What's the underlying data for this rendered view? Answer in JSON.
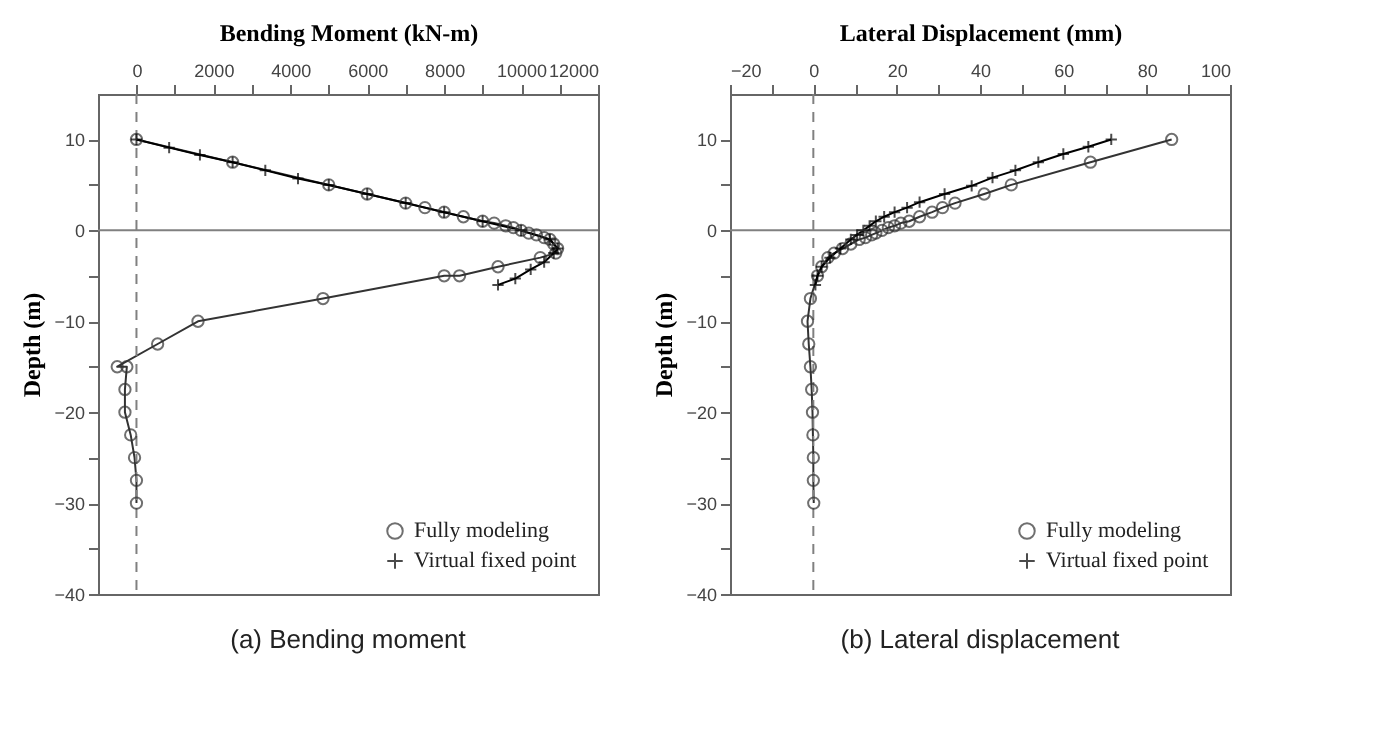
{
  "chart_data": [
    {
      "type": "line",
      "xlabel": "Bending Moment (kN-m)",
      "ylabel": "Depth (m)",
      "annotations": [
        "(a) Bending moment"
      ],
      "legend": "bottom right",
      "grid": false,
      "xlim": [
        -1000,
        12000
      ],
      "xticks": [
        0,
        {
          "value": 1000,
          "label": null
        },
        2000,
        {
          "value": 3000,
          "label": null
        },
        4000,
        {
          "value": 5000,
          "label": null
        },
        6000,
        {
          "value": 7000,
          "label": null
        },
        8000,
        {
          "value": 9000,
          "label": null
        },
        10000,
        {
          "value": 11000,
          "label": null
        },
        12000
      ],
      "ylim": [
        -40,
        15
      ],
      "yticks": [
        10,
        {
          "value": 5,
          "label": null
        },
        0,
        {
          "value": -5,
          "label": null
        },
        -10,
        {
          "value": -15,
          "label": null
        },
        -20,
        {
          "value": -25,
          "label": null
        },
        -30,
        {
          "value": -35,
          "label": null
        },
        -40
      ],
      "ref_lines": [
        {
          "axis": "x",
          "value": 0,
          "label": null,
          "color": "#808080",
          "line_style": "dashed"
        },
        {
          "axis": "y",
          "value": 0,
          "label": null,
          "color": "#808080",
          "line_style": "solid"
        }
      ],
      "series": [
        {
          "name": "Fully modeling",
          "color": "#333333",
          "marker": "circle",
          "x": [
            0,
            2500,
            5000,
            6000,
            7000,
            7500,
            8000,
            8500,
            9000,
            9300,
            9600,
            9800,
            10000,
            10200,
            10400,
            10600,
            10750,
            10850,
            10950,
            10900,
            10500,
            9400,
            8400,
            8000,
            4850,
            1600,
            550,
            -500,
            -250,
            -300,
            -300,
            -150,
            -50,
            0,
            0
          ],
          "values": [
            10,
            7.5,
            5,
            4,
            3,
            2.5,
            2,
            1.5,
            1,
            0.8,
            0.5,
            0.3,
            0,
            -0.3,
            -0.5,
            -0.8,
            -1,
            -1.5,
            -2,
            -2.5,
            -3,
            -4,
            -5,
            -5,
            -7.5,
            -10,
            -12.5,
            -15,
            -15,
            -17.5,
            -20,
            -22.5,
            -25,
            -27.5,
            -30
          ]
        },
        {
          "name": "Virtual fixed point",
          "color": "#000000",
          "marker": "cross",
          "x": [
            0,
            850,
            1650,
            2500,
            3350,
            4200,
            5000,
            6000,
            7000,
            8000,
            9000,
            10000,
            10750,
            10950,
            10850,
            10600,
            10250,
            9850,
            9400
          ],
          "values": [
            10,
            9.1,
            8.3,
            7.5,
            6.6,
            5.7,
            5,
            4,
            3,
            2,
            1,
            0,
            -1,
            -2,
            -2.5,
            -3.5,
            -4.3,
            -5.3,
            -6
          ]
        }
      ]
    },
    {
      "type": "line",
      "xlabel": "Lateral Displacement (mm)",
      "ylabel": "Depth (m)",
      "annotations": [
        "(b) Lateral displacement"
      ],
      "legend": "bottom right",
      "grid": false,
      "xlim": [
        -20,
        100
      ],
      "xticks": [
        -20,
        {
          "value": -10,
          "label": null
        },
        0,
        {
          "value": 10,
          "label": null
        },
        20,
        {
          "value": 30,
          "label": null
        },
        40,
        {
          "value": 50,
          "label": null
        },
        60,
        {
          "value": 70,
          "label": null
        },
        80,
        {
          "value": 90,
          "label": null
        },
        100
      ],
      "ylim": [
        -40,
        15
      ],
      "yticks": [
        10,
        {
          "value": 5,
          "label": null
        },
        0,
        {
          "value": -5,
          "label": null
        },
        -10,
        {
          "value": -15,
          "label": null
        },
        -20,
        {
          "value": -25,
          "label": null
        },
        -30,
        {
          "value": -35,
          "label": null
        },
        -40
      ],
      "ref_lines": [
        {
          "axis": "x",
          "value": 0,
          "label": null,
          "color": "#808080",
          "line_style": "dashed"
        },
        {
          "axis": "y",
          "value": 0,
          "label": null,
          "color": "#808080",
          "line_style": "solid"
        }
      ],
      "series": [
        {
          "name": "Fully modeling",
          "color": "#333333",
          "marker": "circle",
          "x": [
            86,
            66.5,
            47.5,
            41,
            34,
            31,
            28.5,
            25.5,
            23,
            21,
            19.5,
            18,
            16.5,
            15,
            14,
            12.5,
            11,
            9,
            7,
            5,
            3.5,
            2,
            1,
            -0.7,
            -1.4,
            -1.1,
            -0.7,
            -0.4,
            -0.2,
            -0.1,
            0,
            0,
            0.1
          ],
          "values": [
            10,
            7.5,
            5,
            4,
            3,
            2.5,
            2,
            1.5,
            1,
            0.8,
            0.5,
            0.3,
            0,
            -0.3,
            -0.5,
            -0.8,
            -1,
            -1.5,
            -2,
            -2.5,
            -3,
            -4,
            -5,
            -7.5,
            -10,
            -12.5,
            -15,
            -17.5,
            -20,
            -22.5,
            -25,
            -27.5,
            -30
          ]
        },
        {
          "name": "Virtual fixed point",
          "color": "#000000",
          "marker": "cross",
          "x": [
            71.5,
            66,
            60,
            54,
            48.5,
            43,
            38,
            31.5,
            25.5,
            22.5,
            19.5,
            17,
            15,
            13.5,
            12,
            10.5,
            9,
            6.5,
            4,
            2,
            1,
            0.5
          ],
          "values": [
            10,
            9.2,
            8.4,
            7.5,
            6.6,
            5.8,
            4.9,
            4,
            3.1,
            2.5,
            2,
            1.5,
            1,
            0.5,
            0,
            -0.5,
            -1,
            -2,
            -3,
            -4,
            -5,
            -6
          ]
        }
      ]
    }
  ]
}
